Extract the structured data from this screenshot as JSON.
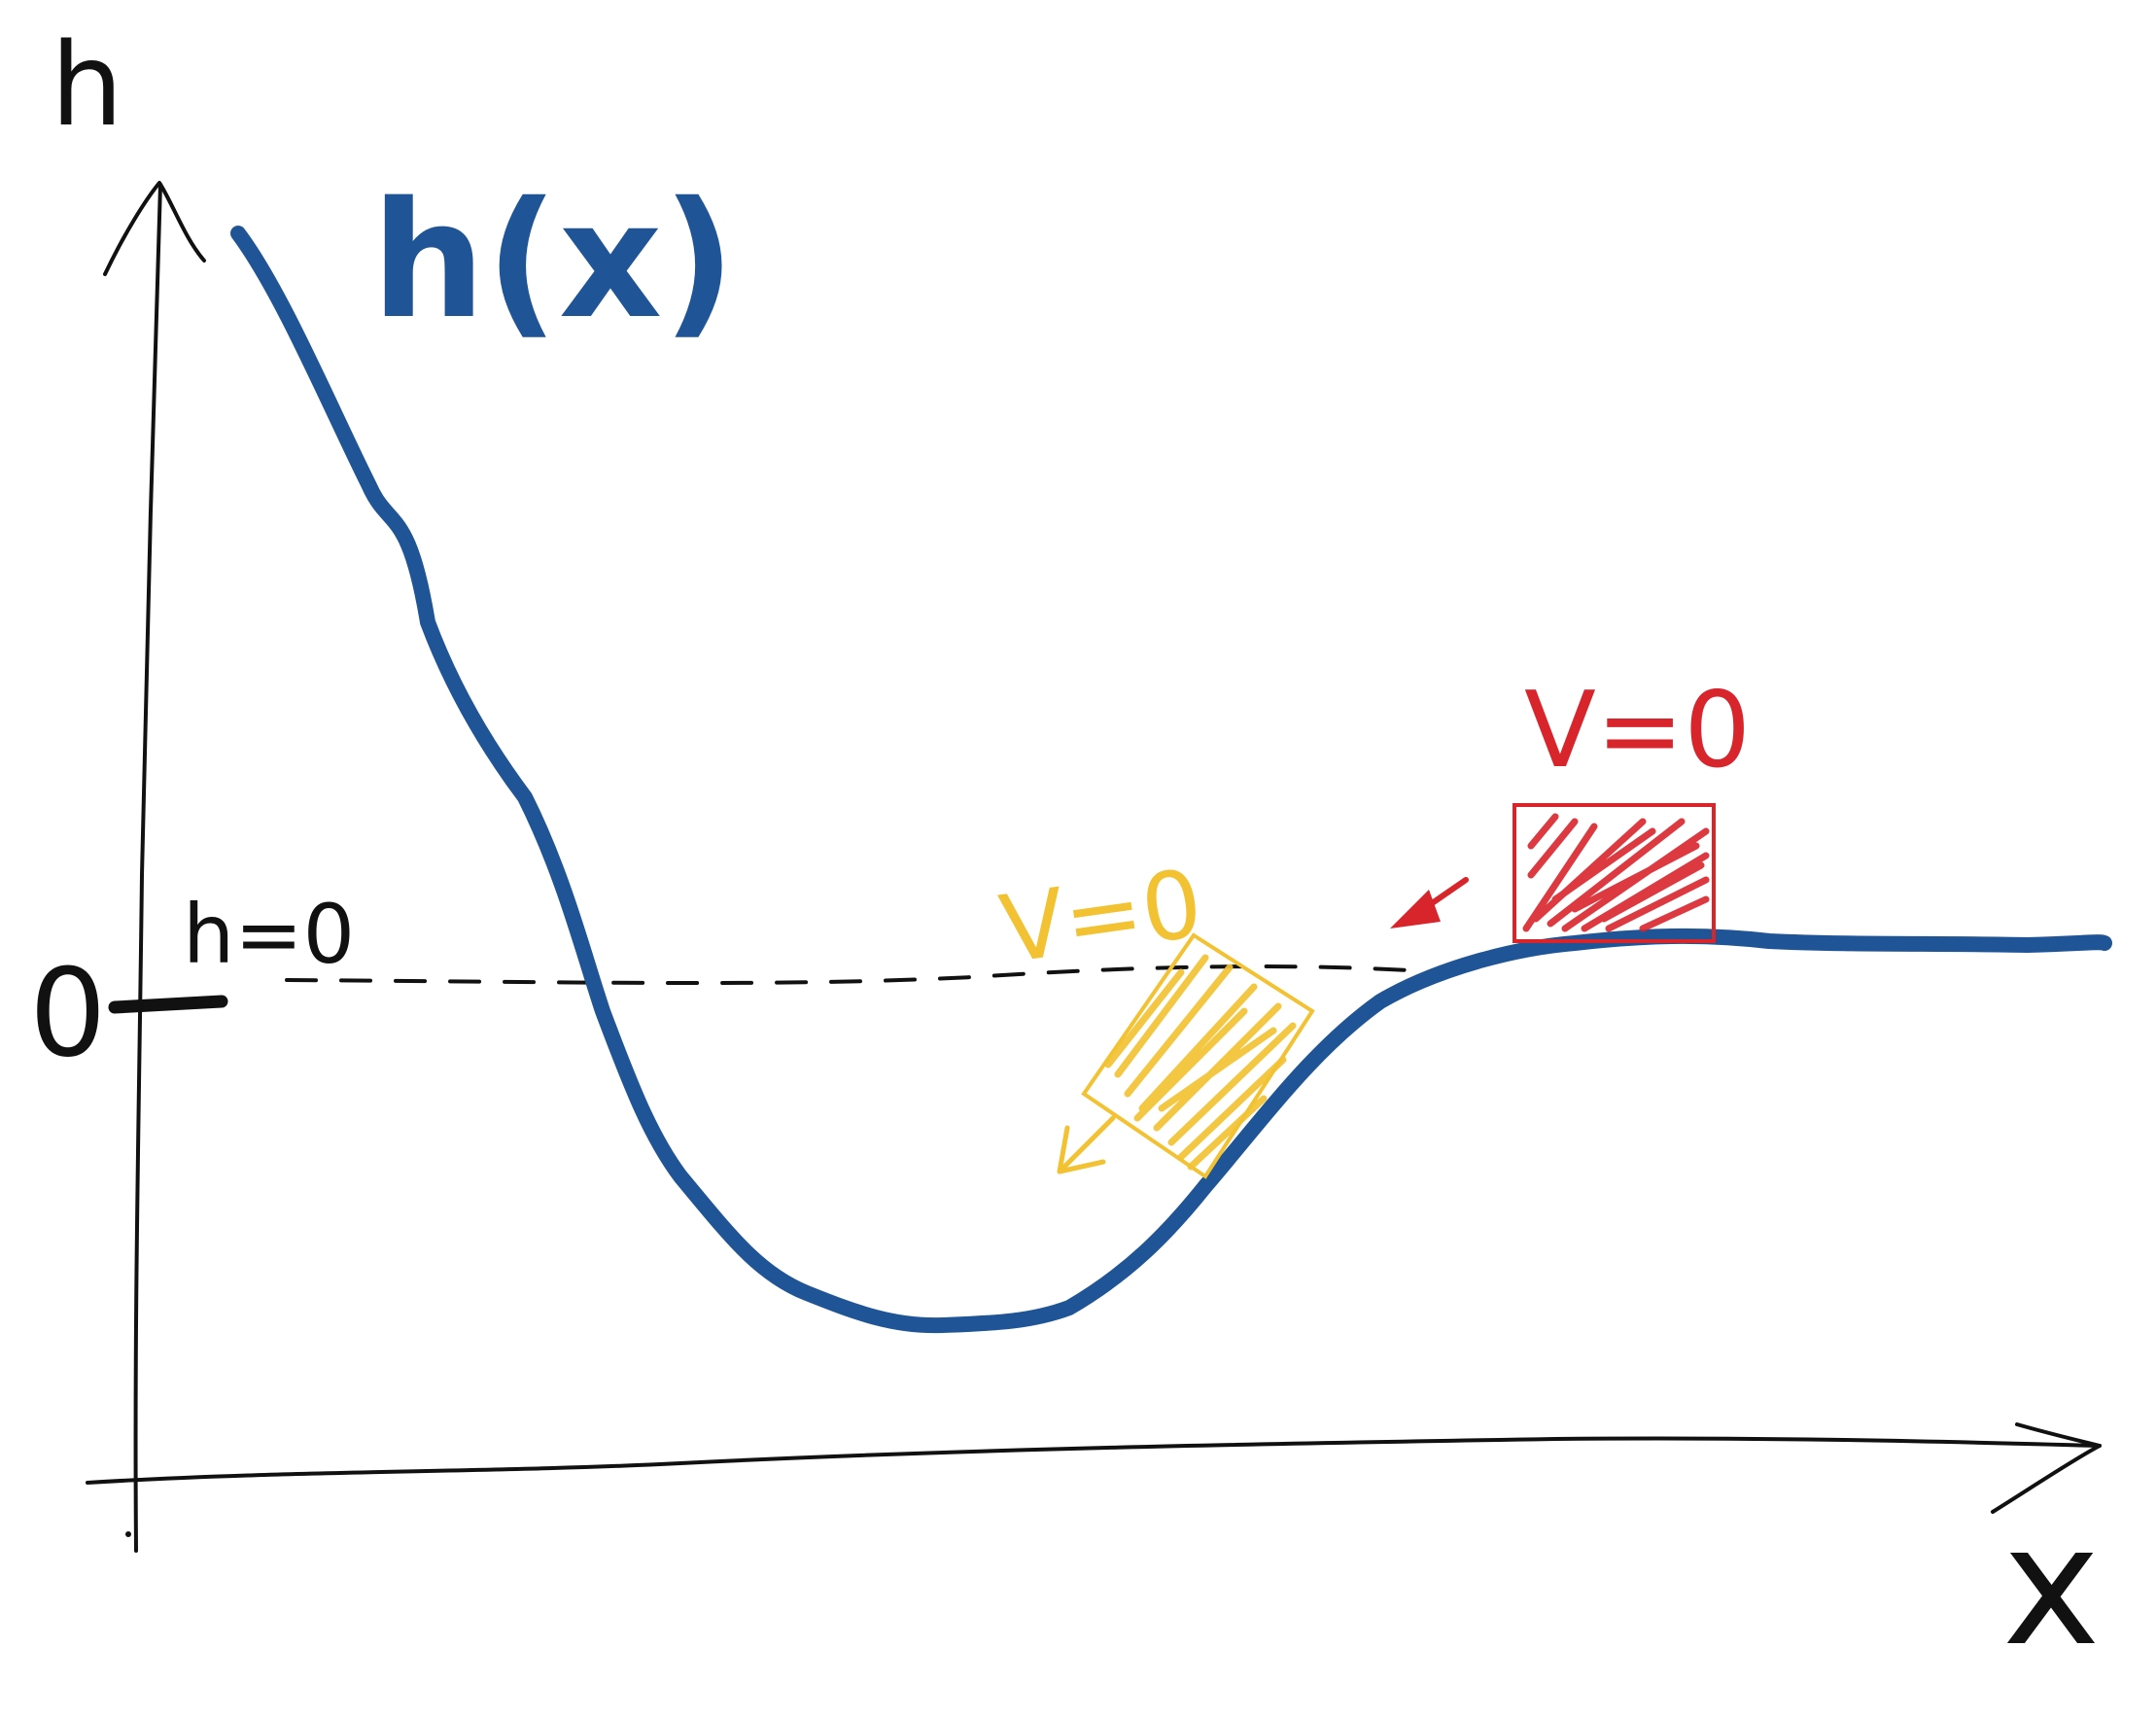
{
  "labels": {
    "y_axis": "h",
    "x_axis": "x",
    "curve": "h(x)",
    "zero_level": "h=0",
    "zero_tick": "0",
    "red_velocity": "V=0",
    "yellow_velocity": "V=0"
  },
  "colors": {
    "curve": "#1f5596",
    "axes": "#111111",
    "red_block": "#d8242b",
    "yellow_block": "#f2c232",
    "dashed_line": "#111111"
  },
  "icons": {
    "y_axis_arrow": "arrow-up",
    "x_axis_arrow": "arrow-right",
    "red_motion_arrow": "arrow-down-left",
    "yellow_motion_arrow": "arrow-down-left"
  }
}
